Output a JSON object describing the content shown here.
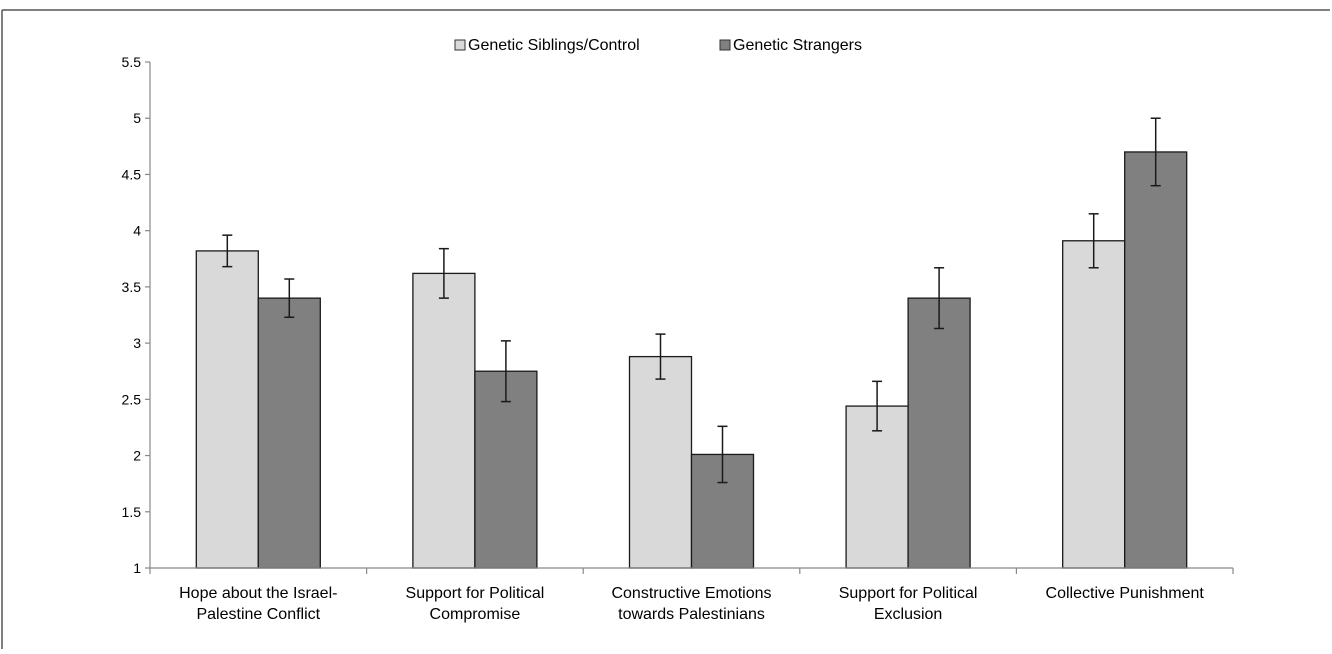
{
  "chart_data": {
    "type": "bar",
    "categories": [
      [
        "Hope about the Israel-",
        "Palestine Conflict"
      ],
      [
        "Support for Political",
        "Compromise"
      ],
      [
        "Constructive Emotions",
        "towards Palestinians"
      ],
      [
        "Support for Political",
        "Exclusion"
      ],
      [
        "Collective Punishment"
      ]
    ],
    "series": [
      {
        "name": "Genetic Siblings/Control",
        "color": "#d9d9d9",
        "values": [
          3.82,
          3.62,
          2.88,
          2.44,
          3.91
        ],
        "errors": [
          0.14,
          0.22,
          0.2,
          0.22,
          0.24
        ]
      },
      {
        "name": "Genetic Strangers",
        "color": "#808080",
        "values": [
          3.4,
          2.75,
          2.01,
          3.4,
          4.7
        ],
        "errors": [
          0.17,
          0.27,
          0.25,
          0.27,
          0.3
        ]
      }
    ],
    "title": "",
    "xlabel": "",
    "ylabel": "",
    "ylim": [
      1,
      5.5
    ],
    "yticks": [
      "1",
      "1.5",
      "2",
      "2.5",
      "3",
      "3.5",
      "4",
      "4.5",
      "5",
      "5.5"
    ],
    "grid": false,
    "legend_position": "top-center"
  }
}
